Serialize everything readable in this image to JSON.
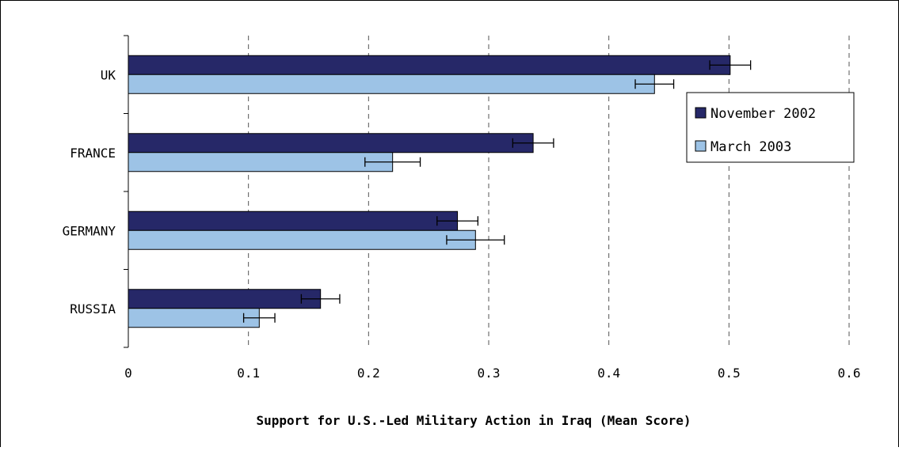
{
  "chart_data": {
    "type": "bar",
    "orientation": "horizontal",
    "categories": [
      "UK",
      "FRANCE",
      "GERMANY",
      "RUSSIA"
    ],
    "series": [
      {
        "name": "November 2002",
        "color": "#262868",
        "values": [
          0.501,
          0.337,
          0.274,
          0.16
        ],
        "error": [
          0.017,
          0.017,
          0.017,
          0.016
        ]
      },
      {
        "name": "March 2003",
        "color": "#9dc3e6",
        "values": [
          0.438,
          0.22,
          0.289,
          0.109
        ],
        "error": [
          0.016,
          0.023,
          0.024,
          0.013
        ]
      }
    ],
    "xlim": [
      0,
      0.6
    ],
    "xticks": [
      "0",
      "0.1",
      "0.2",
      "0.3",
      "0.4",
      "0.5",
      "0.6"
    ],
    "xlabel": "Support for U.S.-Led Military Action in Iraq (Mean Score)",
    "grid": "vertical dashed",
    "legend_position": "right"
  }
}
